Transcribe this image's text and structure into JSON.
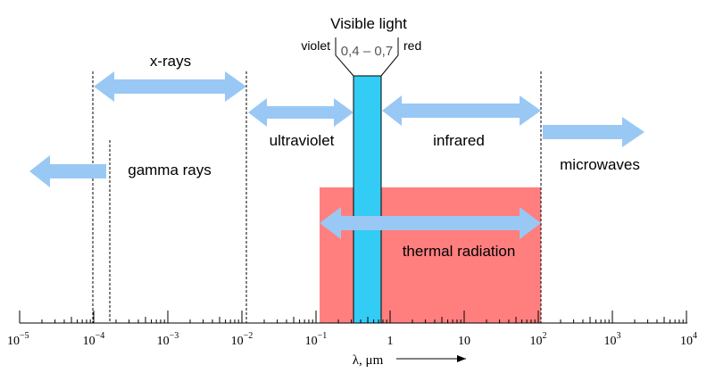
{
  "colors": {
    "arrow": "#99c8f5",
    "visible_bar": "#33ccf5",
    "thermal": "#ff7f7f",
    "line": "#000000"
  },
  "visible": {
    "title": "Visible light",
    "left_label": "violet",
    "range": "0,4 – 0,7",
    "right_label": "red"
  },
  "bands": {
    "xrays": "x-rays",
    "ultraviolet": "ultraviolet",
    "infrared": "infrared",
    "gamma": "gamma rays",
    "microwaves": "microwaves",
    "thermal": "thermal radiation"
  },
  "axis": {
    "label": "λ, μm",
    "ticks": [
      {
        "base": "10",
        "exp": "−5"
      },
      {
        "base": "10",
        "exp": "−4"
      },
      {
        "base": "10",
        "exp": "−3"
      },
      {
        "base": "10",
        "exp": "−2"
      },
      {
        "base": "10",
        "exp": "−1"
      },
      {
        "base": "1",
        "exp": ""
      },
      {
        "base": "10",
        "exp": ""
      },
      {
        "base": "10",
        "exp": "2"
      },
      {
        "base": "10",
        "exp": "3"
      },
      {
        "base": "10",
        "exp": "4"
      }
    ]
  }
}
